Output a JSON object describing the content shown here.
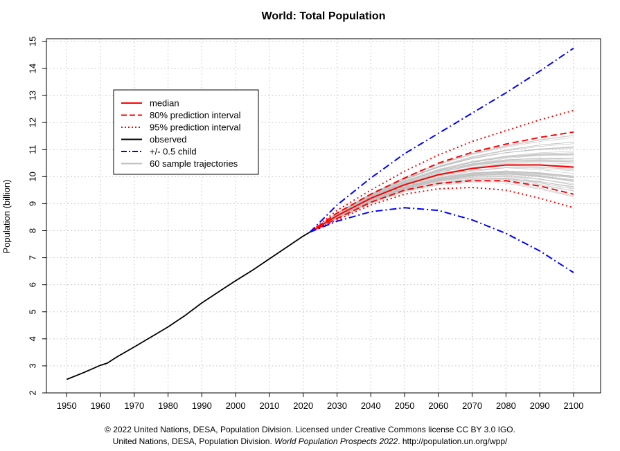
{
  "chart_data": {
    "type": "line",
    "title": "World: Total Population",
    "xlabel": "",
    "ylabel": "Population (billion)",
    "xlim": [
      1944,
      2108
    ],
    "ylim": [
      2,
      15.1
    ],
    "xticks": [
      1950,
      1960,
      1970,
      1980,
      1990,
      2000,
      2010,
      2020,
      2030,
      2040,
      2050,
      2060,
      2070,
      2080,
      2090,
      2100
    ],
    "yticks": [
      2,
      3,
      4,
      5,
      6,
      7,
      8,
      9,
      10,
      11,
      12,
      13,
      14,
      15
    ],
    "x_tick_labels": [
      "1950",
      "1960",
      "1970",
      "1980",
      "1990",
      "2000",
      "2010",
      "2020",
      "2030",
      "2040",
      "2050",
      "2060",
      "2070",
      "2080",
      "2090",
      "2100"
    ],
    "y_tick_labels": [
      "2",
      "3",
      "4",
      "5",
      "6",
      "7",
      "8",
      "9",
      "10",
      "11",
      "12",
      "13",
      "14",
      "15"
    ],
    "grid": true,
    "legend_position": "top-left",
    "colors": {
      "median": "#ff0000",
      "observed": "#000000",
      "child": "#0000ff",
      "sample": "#bfbfbf"
    },
    "legend": [
      {
        "label": "median",
        "style": "solid",
        "color": "#ff0000"
      },
      {
        "label": "80% prediction interval",
        "style": "dashed",
        "color": "#ff0000"
      },
      {
        "label": "95% prediction interval",
        "style": "dotted",
        "color": "#ff0000"
      },
      {
        "label": "observed",
        "style": "solid",
        "color": "#000000"
      },
      {
        "label": "+/- 0.5 child",
        "style": "dashdot",
        "color": "#0000ff"
      },
      {
        "label": "60 sample trajectories",
        "style": "solid",
        "color": "#bfbfbf"
      }
    ],
    "sample_trajectory_count": 60,
    "series": [
      {
        "name": "observed",
        "style": "solid",
        "color": "#000000",
        "x": [
          1950,
          1955,
          1960,
          1962,
          1965,
          1970,
          1975,
          1980,
          1985,
          1990,
          1995,
          2000,
          2005,
          2010,
          2015,
          2020,
          2022
        ],
        "y": [
          2.5,
          2.75,
          3.02,
          3.1,
          3.34,
          3.7,
          4.07,
          4.44,
          4.86,
          5.33,
          5.74,
          6.15,
          6.54,
          6.96,
          7.38,
          7.8,
          7.95
        ]
      },
      {
        "name": "median",
        "style": "solid",
        "color": "#ff0000",
        "x": [
          2022,
          2030,
          2040,
          2050,
          2060,
          2070,
          2080,
          2090,
          2100
        ],
        "y": [
          7.95,
          8.55,
          9.2,
          9.7,
          10.07,
          10.3,
          10.43,
          10.43,
          10.35
        ]
      },
      {
        "name": "80% upper",
        "style": "dashed",
        "color": "#ff0000",
        "x": [
          2022,
          2030,
          2040,
          2050,
          2060,
          2070,
          2080,
          2090,
          2100
        ],
        "y": [
          7.95,
          8.65,
          9.35,
          9.95,
          10.5,
          10.9,
          11.2,
          11.45,
          11.65
        ]
      },
      {
        "name": "80% lower",
        "style": "dashed",
        "color": "#ff0000",
        "x": [
          2022,
          2030,
          2040,
          2050,
          2060,
          2070,
          2080,
          2090,
          2100
        ],
        "y": [
          7.95,
          8.45,
          9.05,
          9.5,
          9.75,
          9.85,
          9.85,
          9.65,
          9.35
        ]
      },
      {
        "name": "95% upper",
        "style": "dotted",
        "color": "#ff0000",
        "x": [
          2022,
          2030,
          2040,
          2050,
          2060,
          2070,
          2080,
          2090,
          2100
        ],
        "y": [
          7.95,
          8.75,
          9.5,
          10.2,
          10.8,
          11.3,
          11.7,
          12.1,
          12.45
        ]
      },
      {
        "name": "95% lower",
        "style": "dotted",
        "color": "#ff0000",
        "x": [
          2022,
          2030,
          2040,
          2050,
          2060,
          2070,
          2080,
          2090,
          2100
        ],
        "y": [
          7.95,
          8.4,
          8.95,
          9.35,
          9.55,
          9.6,
          9.5,
          9.2,
          8.85
        ]
      },
      {
        "name": "+0.5 child",
        "style": "dashdot",
        "color": "#0000ff",
        "x": [
          2022,
          2030,
          2040,
          2050,
          2060,
          2070,
          2080,
          2090,
          2100
        ],
        "y": [
          7.95,
          8.95,
          9.95,
          10.85,
          11.6,
          12.35,
          13.1,
          13.9,
          14.75
        ]
      },
      {
        "name": "-0.5 child",
        "style": "dashdot",
        "color": "#0000ff",
        "x": [
          2022,
          2030,
          2040,
          2050,
          2060,
          2070,
          2080,
          2090,
          2100
        ],
        "y": [
          7.95,
          8.35,
          8.7,
          8.85,
          8.75,
          8.4,
          7.9,
          7.25,
          6.45
        ]
      }
    ]
  },
  "footer": {
    "line1": "© 2022 United Nations, DESA, Population Division. Licensed under Creative Commons license CC BY 3.0 IGO.",
    "line2_prefix": "United Nations, DESA, Population Division. ",
    "line2_italic": "World Population Prospects 2022",
    "line2_suffix": ". http://population.un.org/wpp/"
  }
}
